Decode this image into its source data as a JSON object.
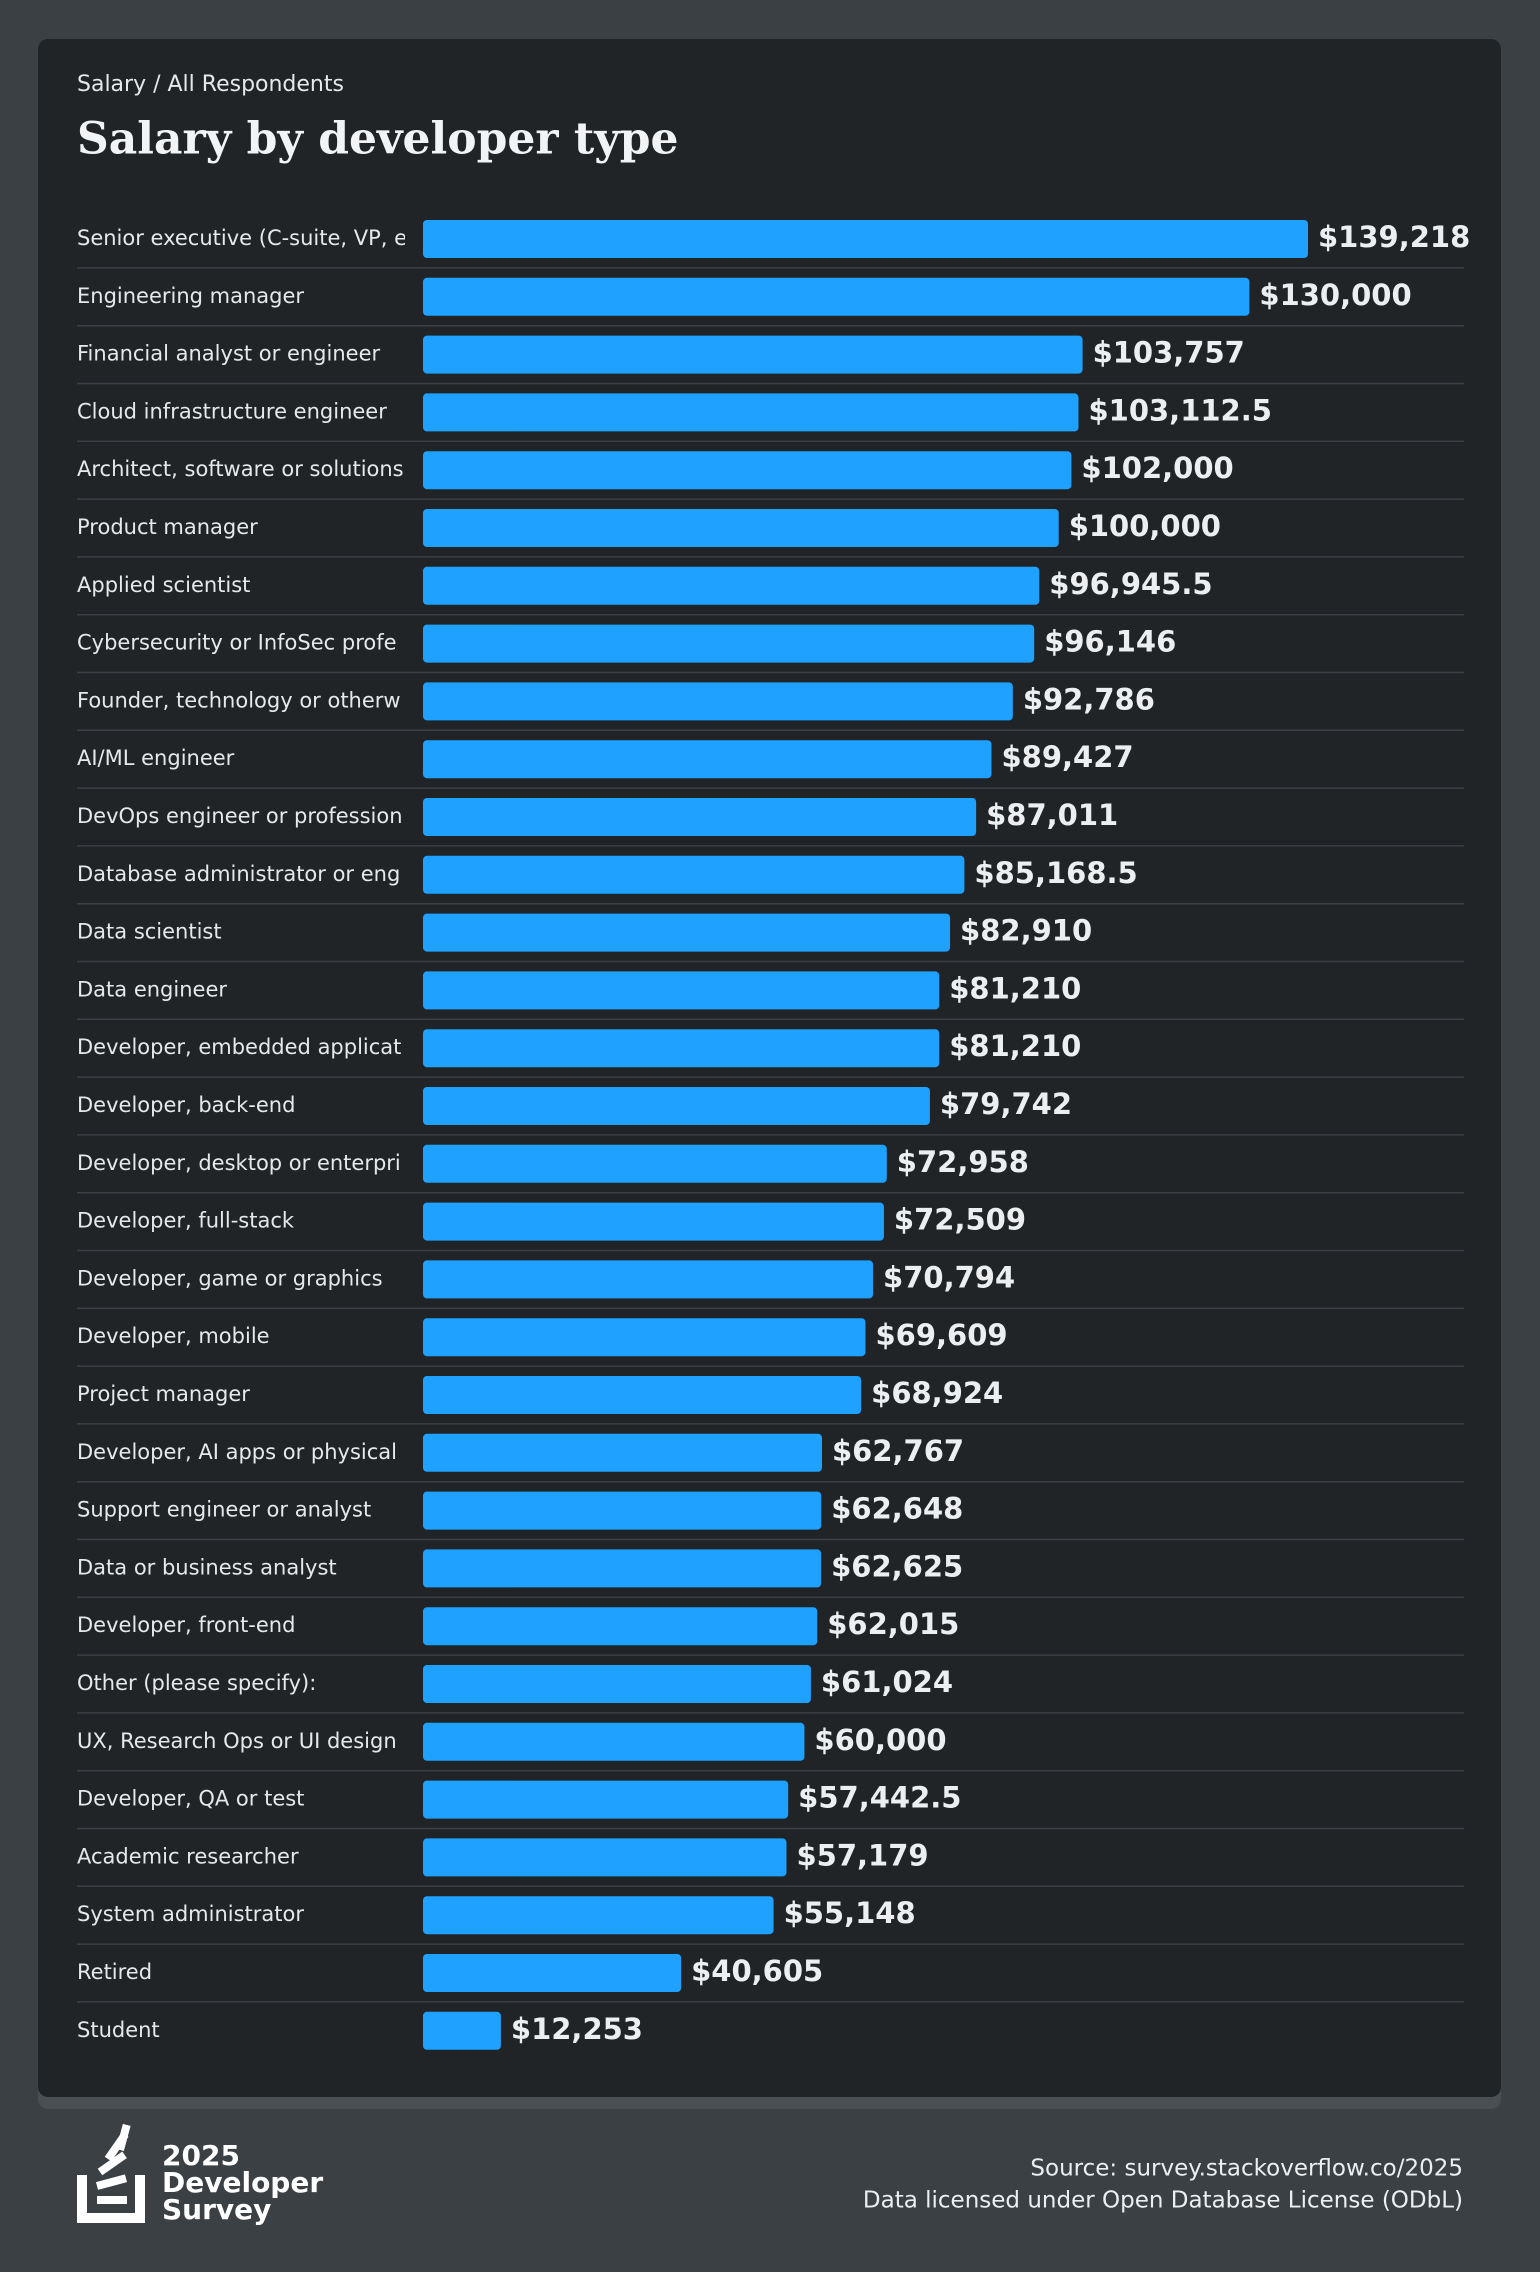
{
  "chart_data": {
    "type": "bar",
    "orientation": "horizontal",
    "subtitle": "Salary / All Respondents",
    "title": "Salary by developer type",
    "color": "#1ea1ff",
    "categories": [
      "Senior executive (C-suite, VP, e",
      "Engineering manager",
      "Financial analyst or engineer",
      "Cloud infrastructure engineer",
      "Architect, software or solutions",
      "Product manager",
      "Applied scientist",
      "Cybersecurity or InfoSec profe",
      "Founder, technology or otherw",
      "AI/ML engineer",
      "DevOps engineer or profession",
      "Database administrator or eng",
      "Data scientist",
      "Data engineer",
      "Developer, embedded applicat",
      "Developer, back-end",
      "Developer, desktop or enterpri",
      "Developer, full-stack",
      "Developer, game or graphics",
      "Developer, mobile",
      "Project manager",
      "Developer, AI apps or physical",
      "Support engineer or analyst",
      "Data or business analyst",
      "Developer, front-end",
      "Other (please specify):",
      "UX, Research Ops or UI design",
      "Developer, QA or test",
      "Academic researcher",
      "System administrator",
      "Retired",
      "Student"
    ],
    "values": [
      139218,
      130000,
      103757,
      103112.5,
      102000,
      100000,
      96945.5,
      96146,
      92786,
      89427,
      87011,
      85168.5,
      82910,
      81210,
      81210,
      79742,
      72958,
      72509,
      70794,
      69609,
      68924,
      62767,
      62648,
      62625,
      62015,
      61024,
      60000,
      57442.5,
      57179,
      55148,
      40605,
      12253
    ],
    "value_labels": [
      "$139,218",
      "$130,000",
      "$103,757",
      "$103,112.5",
      "$102,000",
      "$100,000",
      "$96,945.5",
      "$96,146",
      "$92,786",
      "$89,427",
      "$87,011",
      "$85,168.5",
      "$82,910",
      "$81,210",
      "$81,210",
      "$79,742",
      "$72,958",
      "$72,509",
      "$70,794",
      "$69,609",
      "$68,924",
      "$62,767",
      "$62,648",
      "$62,625",
      "$62,015",
      "$61,024",
      "$60,000",
      "$57,442.5",
      "$57,179",
      "$55,148",
      "$40,605",
      "$12,253"
    ]
  },
  "footer": {
    "logo": [
      "2025",
      "Developer",
      "Survey"
    ],
    "source": "Source: survey.stackoverflow.co/2025",
    "license": "Data licensed under Open Database License (ODbL)"
  }
}
